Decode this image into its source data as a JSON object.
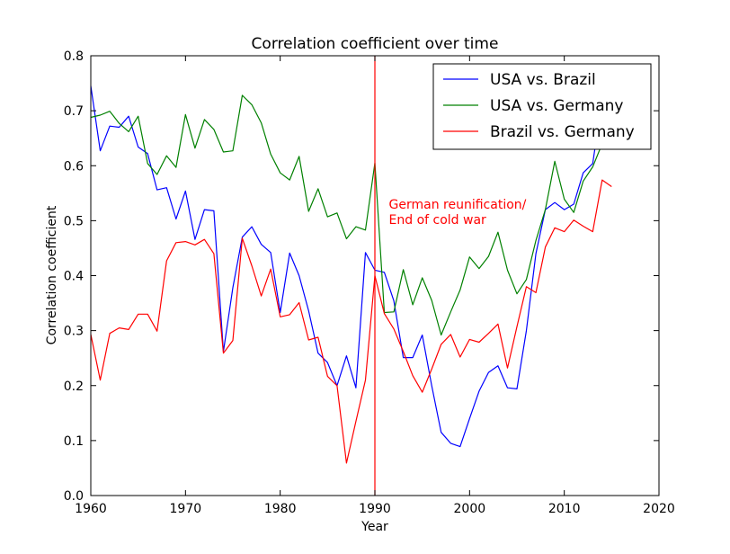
{
  "chart_data": {
    "type": "line",
    "title": "Correlation coefficient over time",
    "xlabel": "Year",
    "ylabel": "Correlation coefficient",
    "xlim": [
      1960,
      2020
    ],
    "ylim": [
      0.0,
      0.8
    ],
    "xticks": [
      1960,
      1970,
      1980,
      1990,
      2000,
      2010,
      2020
    ],
    "xtick_labels": [
      "1960",
      "1970",
      "1980",
      "1990",
      "2000",
      "2010",
      "2020"
    ],
    "yticks": [
      0.0,
      0.1,
      0.2,
      0.3,
      0.4,
      0.5,
      0.6,
      0.7,
      0.8
    ],
    "ytick_labels": [
      "0.0",
      "0.1",
      "0.2",
      "0.3",
      "0.4",
      "0.5",
      "0.6",
      "0.7",
      "0.8"
    ],
    "grid": false,
    "legend_position": "top-right",
    "x": [
      1960,
      1961,
      1962,
      1963,
      1964,
      1965,
      1966,
      1967,
      1968,
      1969,
      1970,
      1971,
      1972,
      1973,
      1974,
      1975,
      1976,
      1977,
      1978,
      1979,
      1980,
      1981,
      1982,
      1983,
      1984,
      1985,
      1986,
      1987,
      1988,
      1989,
      1990,
      1991,
      1992,
      1993,
      1994,
      1995,
      1996,
      1997,
      1998,
      1999,
      2000,
      2001,
      2002,
      2003,
      2004,
      2005,
      2006,
      2007,
      2008,
      2009,
      2010,
      2011,
      2012,
      2013,
      2014,
      2015
    ],
    "series": [
      {
        "name": "USA vs. Brazil",
        "color": "#0000ff",
        "values": [
          0.745,
          0.627,
          0.672,
          0.67,
          0.69,
          0.634,
          0.622,
          0.556,
          0.56,
          0.503,
          0.554,
          0.466,
          0.52,
          0.518,
          0.262,
          0.378,
          0.47,
          0.489,
          0.457,
          0.442,
          0.333,
          0.441,
          0.4,
          0.336,
          0.259,
          0.242,
          0.2,
          0.254,
          0.196,
          0.442,
          0.41,
          0.406,
          0.354,
          0.251,
          0.251,
          0.292,
          0.2,
          0.115,
          0.095,
          0.089,
          0.14,
          0.19,
          0.224,
          0.236,
          0.196,
          0.194,
          0.3,
          0.44,
          0.52,
          0.533,
          0.52,
          0.53,
          0.587,
          0.604,
          0.72,
          0.77
        ]
      },
      {
        "name": "USA vs. Germany",
        "color": "#008000",
        "values": [
          0.688,
          0.692,
          0.699,
          0.677,
          0.662,
          0.69,
          0.604,
          0.584,
          0.618,
          0.597,
          0.693,
          0.632,
          0.684,
          0.666,
          0.625,
          0.627,
          0.728,
          0.711,
          0.678,
          0.621,
          0.587,
          0.574,
          0.617,
          0.517,
          0.558,
          0.507,
          0.514,
          0.467,
          0.489,
          0.483,
          0.605,
          0.333,
          0.334,
          0.411,
          0.347,
          0.396,
          0.355,
          0.292,
          0.334,
          0.374,
          0.434,
          0.413,
          0.435,
          0.479,
          0.41,
          0.367,
          0.393,
          0.464,
          0.52,
          0.608,
          0.539,
          0.515,
          0.572,
          0.598,
          0.64,
          0.66
        ]
      },
      {
        "name": "Brazil vs. Germany",
        "color": "#ff0000",
        "values": [
          0.293,
          0.21,
          0.295,
          0.305,
          0.302,
          0.33,
          0.33,
          0.299,
          0.427,
          0.46,
          0.462,
          0.456,
          0.466,
          0.44,
          0.259,
          0.282,
          0.468,
          0.418,
          0.363,
          0.412,
          0.325,
          0.329,
          0.351,
          0.283,
          0.288,
          0.217,
          0.2,
          0.059,
          0.135,
          0.21,
          0.4,
          0.331,
          0.303,
          0.262,
          0.218,
          0.188,
          0.23,
          0.275,
          0.293,
          0.252,
          0.284,
          0.279,
          0.295,
          0.312,
          0.232,
          0.307,
          0.38,
          0.369,
          0.452,
          0.487,
          0.48,
          0.501,
          0.49,
          0.48,
          0.574,
          0.562
        ]
      }
    ],
    "vline": {
      "x": 1990,
      "color": "#ff0000"
    },
    "annotation": {
      "lines": [
        "German reunification/",
        "End of cold war"
      ],
      "x": 1991,
      "y": 0.525,
      "color": "#ff0000"
    }
  }
}
